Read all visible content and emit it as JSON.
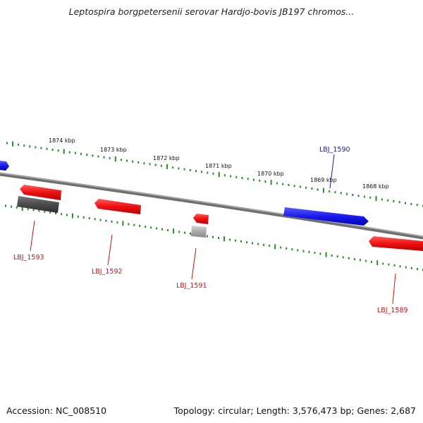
{
  "title": "Leptospira borgpetersenii serovar Hardjo-bovis JB197 chromos...",
  "footer": {
    "accession": "Accession: NC_008510",
    "summary": "Topology: circular; Length: 3,576,473 bp; Genes: 2,687"
  },
  "colors": {
    "forward_gene": "#1a1aee",
    "reverse_gene": "#ee1a1a",
    "pseudo_dark": "#555555",
    "pseudo_light": "#aaaaaa",
    "backbone": "#808080",
    "tick": "#2a8a2a",
    "forward_label": "#1a1aaa",
    "reverse_label": "#cc1111"
  },
  "scale_labels": [
    "1874 kbp",
    "1873 kbp",
    "1872 kbp",
    "1871 kbp",
    "1870 kbp",
    "1869 kbp",
    "1868 kbp"
  ],
  "gene_labels": [
    {
      "id": "lbj1593",
      "text": "LBJ_1593",
      "strand": "reverse"
    },
    {
      "id": "lbj1592",
      "text": "LBJ_1592",
      "strand": "reverse"
    },
    {
      "id": "lbj1591",
      "text": "LBJ_1591",
      "strand": "reverse"
    },
    {
      "id": "lbj1590",
      "text": "LBJ_1590",
      "strand": "forward"
    },
    {
      "id": "lbj1589",
      "text": "LBJ_1589",
      "strand": "reverse"
    }
  ]
}
